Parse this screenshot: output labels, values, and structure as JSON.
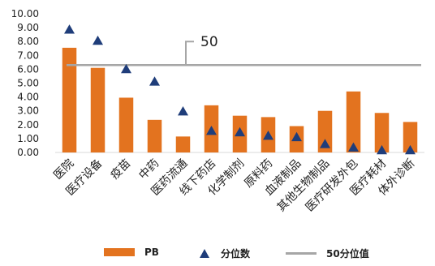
{
  "chart_data": {
    "type": "bar",
    "categories": [
      "医院",
      "医疗设备",
      "疫苗",
      "中药",
      "医药流通",
      "线下药店",
      "化学制剂",
      "原料药",
      "血液制品",
      "其他生物制品",
      "医疗研发外包",
      "医疗耗材",
      "体外诊断"
    ],
    "series": [
      {
        "name": "PB",
        "type": "bar",
        "values": [
          7.55,
          6.1,
          3.95,
          2.35,
          1.15,
          3.4,
          2.65,
          2.55,
          1.9,
          3.0,
          4.4,
          2.85,
          2.2
        ]
      },
      {
        "name": "分位数",
        "type": "scatter",
        "marker": "triangle",
        "values": [
          8.85,
          8.05,
          6.0,
          5.1,
          2.95,
          1.55,
          1.45,
          1.2,
          1.1,
          0.6,
          0.35,
          0.15,
          0.15
        ]
      },
      {
        "name": "50分位值",
        "type": "line",
        "values": [
          6.3,
          6.3,
          6.3,
          6.3,
          6.3,
          6.3,
          6.3,
          6.3,
          6.3,
          6.3,
          6.3,
          6.3,
          6.3
        ]
      }
    ],
    "yticks": [
      "10.00",
      "9.00",
      "8.00",
      "7.00",
      "6.00",
      "5.00",
      "4.00",
      "3.00",
      "2.00",
      "1.00",
      "0.00"
    ],
    "ylim": [
      0,
      10
    ],
    "annotation": "50",
    "legend_position": "bottom",
    "grid": false,
    "colors": {
      "bar": "#E3731F",
      "marker": "#1F3D7A",
      "line": "#A6A6A6",
      "axis": "#D9D9D9",
      "text": "#222222"
    }
  },
  "legend": {
    "bar_label": "PB",
    "marker_label": "分位数",
    "line_label": "50分位值"
  }
}
